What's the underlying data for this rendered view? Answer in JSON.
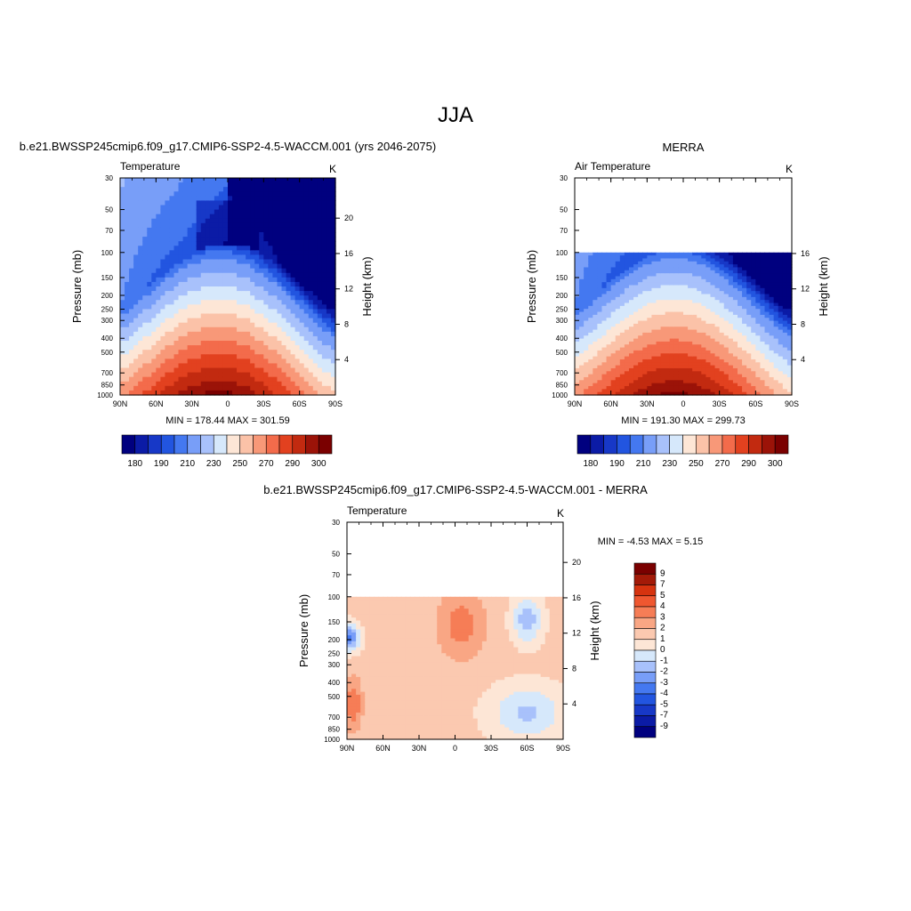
{
  "main_title": "JJA",
  "chart_data": [
    {
      "type": "heatmap",
      "panel": "model",
      "title": "b.e21.BWSSP245cmip6.f09_g17.CMIP6-SSP2-4.5-WACCM.001 (yrs 2046-2075)",
      "left_label": "Temperature",
      "right_label": "K",
      "xlabel": "",
      "ylabel": "Pressure (mb)",
      "y2label": "Height (km)",
      "x_ticks": [
        "90N",
        "60N",
        "30N",
        "0",
        "30S",
        "60S",
        "90S"
      ],
      "y_ticks": [
        "30",
        "50",
        "70",
        "100",
        "150",
        "200",
        "250",
        "300",
        "400",
        "500",
        "700",
        "850",
        "1000"
      ],
      "y2_ticks": [
        "20",
        "16",
        "12",
        "8",
        "4"
      ],
      "stats": "MIN = 178.44  MAX = 301.59",
      "ylim": [
        1000,
        30
      ],
      "data_top_mb": 30,
      "colorbar_labels": [
        "180",
        "190",
        "210",
        "230",
        "250",
        "270",
        "290",
        "300"
      ]
    },
    {
      "type": "heatmap",
      "panel": "obs",
      "title": "MERRA",
      "left_label": "Air Temperature",
      "right_label": "K",
      "xlabel": "",
      "ylabel": "Pressure (mb)",
      "y2label": "Height (km)",
      "x_ticks": [
        "90N",
        "60N",
        "30N",
        "0",
        "30S",
        "60S",
        "90S"
      ],
      "y_ticks": [
        "30",
        "50",
        "70",
        "100",
        "150",
        "200",
        "250",
        "300",
        "400",
        "500",
        "700",
        "850",
        "1000"
      ],
      "y2_ticks": [
        "16",
        "12",
        "8",
        "4"
      ],
      "stats": "MIN = 191.30  MAX = 299.73",
      "ylim": [
        1000,
        30
      ],
      "data_top_mb": 100,
      "colorbar_labels": [
        "180",
        "190",
        "210",
        "230",
        "250",
        "270",
        "290",
        "300"
      ]
    },
    {
      "type": "heatmap",
      "panel": "diff",
      "title": "b.e21.BWSSP245cmip6.f09_g17.CMIP6-SSP2-4.5-WACCM.001 - MERRA",
      "left_label": "Temperature",
      "right_label": "K",
      "xlabel": "",
      "ylabel": "Pressure (mb)",
      "y2label": "Height (km)",
      "x_ticks": [
        "90N",
        "60N",
        "30N",
        "0",
        "30S",
        "60S",
        "90S"
      ],
      "y_ticks": [
        "30",
        "50",
        "70",
        "100",
        "150",
        "200",
        "250",
        "300",
        "400",
        "500",
        "700",
        "850",
        "1000"
      ],
      "y2_ticks": [
        "20",
        "16",
        "12",
        "8",
        "4"
      ],
      "stats": "MIN =  -4.53  MAX =   5.15",
      "ylim": [
        1000,
        30
      ],
      "data_top_mb": 100,
      "colorbar_labels": [
        "9",
        "7",
        "5",
        "4",
        "3",
        "2",
        "1",
        "0",
        "-1",
        "-2",
        "-3",
        "-4",
        "-5",
        "-7",
        "-9"
      ]
    }
  ],
  "colors": {
    "temp_scale": [
      "#00007f",
      "#0b1ba6",
      "#1738c7",
      "#2255e0",
      "#4478f0",
      "#789ef8",
      "#a8c1fb",
      "#d6e8fb",
      "#fde6d6",
      "#fbc2a8",
      "#f89878",
      "#f36b4b",
      "#e2411f",
      "#c22a10",
      "#9b1308",
      "#7a0000"
    ],
    "diff_scale": [
      "#7a0000",
      "#a31a08",
      "#d6330f",
      "#ef5730",
      "#f67d56",
      "#f9a684",
      "#fbc9b0",
      "#fde6d6",
      "#d6e8fb",
      "#a8c1fb",
      "#789ef8",
      "#4478f0",
      "#2255e0",
      "#1738c7",
      "#0b1ba6",
      "#00007f"
    ]
  }
}
